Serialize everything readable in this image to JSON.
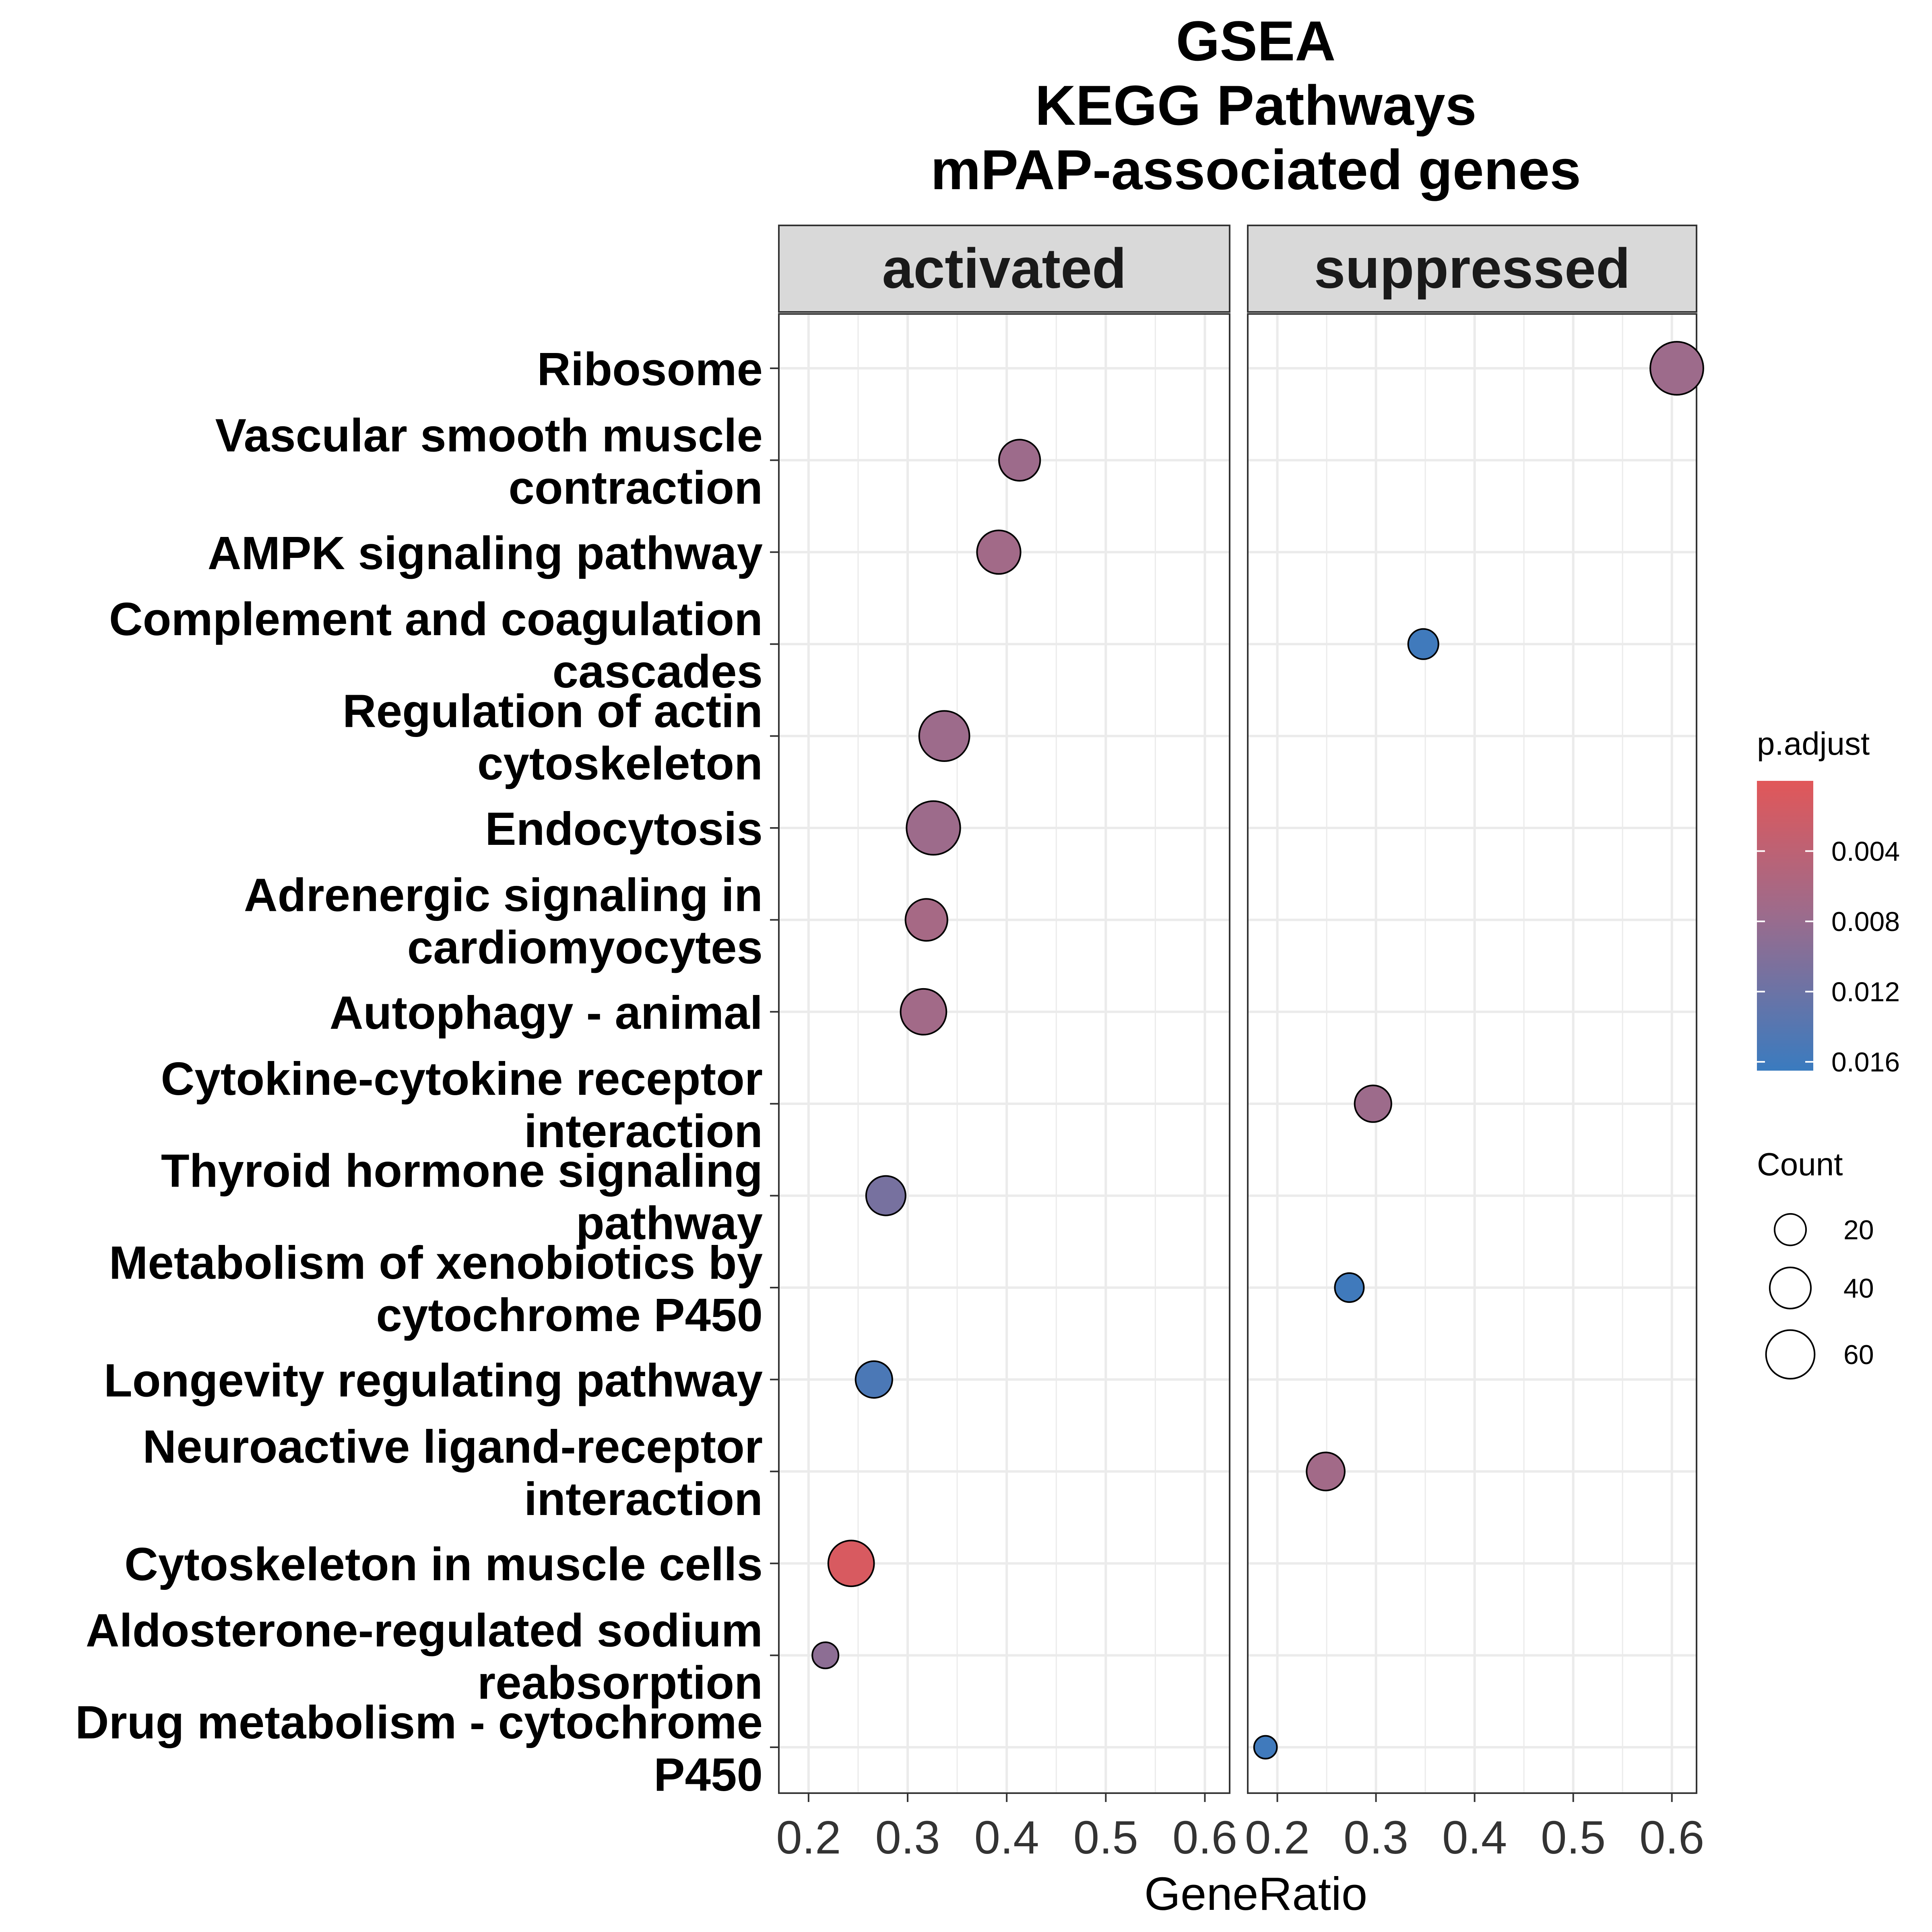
{
  "chart_data": {
    "type": "scatter",
    "title_lines": [
      "GSEA",
      "KEGG Pathways",
      "mPAP-associated genes"
    ],
    "xlabel": "GeneRatio",
    "ylabel": "",
    "xlim": [
      0.17,
      0.625
    ],
    "x_ticks": [
      "0.2",
      "0.3",
      "0.4",
      "0.5",
      "0.6"
    ],
    "grid": true,
    "facets": [
      "activated",
      "suppressed"
    ],
    "categories": [
      "Ribosome",
      "Vascular smooth muscle contraction",
      "AMPK signaling pathway",
      "Complement and coagulation cascades",
      "Regulation of actin cytoskeleton",
      "Endocytosis",
      "Adrenergic signaling in cardiomyocytes",
      "Autophagy - animal",
      "Cytokine-cytokine receptor interaction",
      "Thyroid hormone signaling pathway",
      "Metabolism of xenobiotics by cytochrome P450",
      "Longevity regulating pathway",
      "Neuroactive ligand-receptor interaction",
      "Cytoskeleton in muscle cells",
      "Aldosterone-regulated sodium reabsorption",
      "Drug metabolism - cytochrome P450"
    ],
    "category_label_lines": [
      [
        "Ribosome"
      ],
      [
        "Vascular smooth muscle",
        "contraction"
      ],
      [
        "AMPK signaling pathway"
      ],
      [
        "Complement and coagulation",
        "cascades"
      ],
      [
        "Regulation of actin",
        "cytoskeleton"
      ],
      [
        "Endocytosis"
      ],
      [
        "Adrenergic signaling in",
        "cardiomyocytes"
      ],
      [
        "Autophagy - animal"
      ],
      [
        "Cytokine-cytokine receptor",
        "interaction"
      ],
      [
        "Thyroid hormone signaling",
        "pathway"
      ],
      [
        "Metabolism of xenobiotics by",
        "cytochrome P450"
      ],
      [
        "Longevity regulating pathway"
      ],
      [
        "Neuroactive ligand-receptor",
        "interaction"
      ],
      [
        "Cytoskeleton in muscle cells"
      ],
      [
        "Aldosterone-regulated sodium",
        "reabsorption"
      ],
      [
        "Drug metabolism - cytochrome",
        "P450"
      ]
    ],
    "points": [
      {
        "facet": "suppressed",
        "category": "Ribosome",
        "x": 0.605,
        "count": 74,
        "p_adjust": 0.0075
      },
      {
        "facet": "activated",
        "category": "Vascular smooth muscle contraction",
        "x": 0.413,
        "count": 40,
        "p_adjust": 0.0075
      },
      {
        "facet": "activated",
        "category": "AMPK signaling pathway",
        "x": 0.392,
        "count": 46,
        "p_adjust": 0.007
      },
      {
        "facet": "suppressed",
        "category": "Complement and coagulation cascades",
        "x": 0.348,
        "count": 18,
        "p_adjust": 0.016
      },
      {
        "facet": "activated",
        "category": "Regulation of actin cytoskeleton",
        "x": 0.337,
        "count": 65,
        "p_adjust": 0.0075
      },
      {
        "facet": "activated",
        "category": "Endocytosis",
        "x": 0.326,
        "count": 76,
        "p_adjust": 0.0075
      },
      {
        "facet": "activated",
        "category": "Adrenergic signaling in cardiomyocytes",
        "x": 0.319,
        "count": 42,
        "p_adjust": 0.0065
      },
      {
        "facet": "activated",
        "category": "Autophagy - animal",
        "x": 0.316,
        "count": 52,
        "p_adjust": 0.007
      },
      {
        "facet": "suppressed",
        "category": "Cytokine-cytokine receptor interaction",
        "x": 0.297,
        "count": 30,
        "p_adjust": 0.0075
      },
      {
        "facet": "activated",
        "category": "Thyroid hormone signaling pathway",
        "x": 0.278,
        "count": 36,
        "p_adjust": 0.011
      },
      {
        "facet": "suppressed",
        "category": "Metabolism of xenobiotics by cytochrome P450",
        "x": 0.273,
        "count": 16,
        "p_adjust": 0.016
      },
      {
        "facet": "activated",
        "category": "Longevity regulating pathway",
        "x": 0.266,
        "count": 30,
        "p_adjust": 0.015
      },
      {
        "facet": "suppressed",
        "category": "Neuroactive ligand-receptor interaction",
        "x": 0.249,
        "count": 33,
        "p_adjust": 0.007
      },
      {
        "facet": "activated",
        "category": "Cytoskeleton in muscle cells",
        "x": 0.243,
        "count": 52,
        "p_adjust": 0.001
      },
      {
        "facet": "activated",
        "category": "Aldosterone-regulated sodium reabsorption",
        "x": 0.217,
        "count": 12,
        "p_adjust": 0.009
      },
      {
        "facet": "suppressed",
        "category": "Drug metabolism - cytochrome P450",
        "x": 0.188,
        "count": 8,
        "p_adjust": 0.016
      }
    ],
    "legend": {
      "color_title": "p.adjust",
      "color_ticks": [
        "0.004",
        "0.008",
        "0.012",
        "0.016"
      ],
      "color_tick_values": [
        0.004,
        0.008,
        0.012,
        0.016
      ],
      "color_range": [
        0.0,
        0.0165
      ],
      "color_low": "#e15759",
      "color_mid": "#9e6b8b",
      "color_high": "#3a7bbf",
      "size_title": "Count",
      "size_ticks": [
        "20",
        "40",
        "60"
      ],
      "size_values": [
        20,
        40,
        60
      ]
    },
    "colors": {
      "strip_fill": "#d9d9d9",
      "grid": "#ebebeb",
      "panel_border": "#333333"
    }
  }
}
